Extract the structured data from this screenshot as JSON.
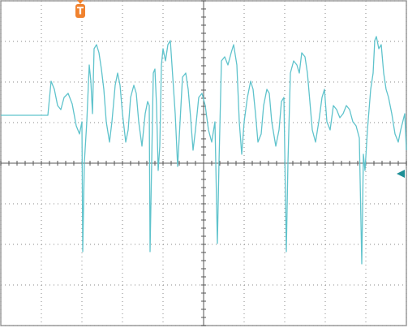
{
  "chart_data": {
    "type": "line",
    "trigger_label": "T",
    "trigger_x": 1.96,
    "ground_level": -0.26,
    "xlim": [
      0,
      10
    ],
    "ylim": [
      -4,
      4
    ],
    "xticks": [
      0,
      1,
      2,
      3,
      4,
      5,
      6,
      7,
      8,
      9,
      10
    ],
    "yticks": [
      -4,
      -3,
      -2,
      -1,
      0,
      1,
      2,
      3,
      4
    ],
    "grid": true,
    "series": [
      {
        "color": "#5fc3cc",
        "x": [
          0,
          1.16,
          1.24,
          1.32,
          1.4,
          1.48,
          1.56,
          1.66,
          1.76,
          1.86,
          1.94,
          2.0,
          2.02,
          2.06,
          2.12,
          2.18,
          2.22,
          2.26,
          2.3,
          2.36,
          2.42,
          2.48,
          2.54,
          2.6,
          2.68,
          2.74,
          2.82,
          2.88,
          2.94,
          3.0,
          3.08,
          3.14,
          3.2,
          3.28,
          3.34,
          3.4,
          3.48,
          3.56,
          3.62,
          3.66,
          3.68,
          3.72,
          3.76,
          3.8,
          3.84,
          3.88,
          3.92,
          3.96,
          4.0,
          4.06,
          4.12,
          4.18,
          4.24,
          4.3,
          4.36,
          4.42,
          4.48,
          4.56,
          4.62,
          4.68,
          4.74,
          4.8,
          4.88,
          4.96,
          5.04,
          5.12,
          5.2,
          5.28,
          5.34,
          5.38,
          5.44,
          5.52,
          5.6,
          5.68,
          5.74,
          5.82,
          5.88,
          5.94,
          6.0,
          6.08,
          6.16,
          6.22,
          6.28,
          6.34,
          6.42,
          6.48,
          6.56,
          6.62,
          6.68,
          6.78,
          6.86,
          6.92,
          6.98,
          7.04,
          7.08,
          7.14,
          7.22,
          7.3,
          7.36,
          7.42,
          7.5,
          7.56,
          7.62,
          7.68,
          7.76,
          7.84,
          7.92,
          7.98,
          8.04,
          8.12,
          8.2,
          8.28,
          8.36,
          8.44,
          8.52,
          8.6,
          8.68,
          8.76,
          8.84,
          8.9,
          8.94,
          8.98,
          9.04,
          9.12,
          9.18,
          9.22,
          9.26,
          9.32,
          9.38,
          9.44,
          9.5,
          9.56,
          9.64,
          9.72,
          9.8,
          9.86,
          9.96,
          10.0
        ],
        "values": [
          1.18,
          1.18,
          2.02,
          1.82,
          1.42,
          1.32,
          1.62,
          1.72,
          1.46,
          0.92,
          0.72,
          1.02,
          -2.18,
          0.02,
          1.02,
          2.42,
          2.02,
          1.22,
          2.82,
          2.92,
          2.72,
          2.32,
          1.82,
          1.02,
          0.52,
          1.02,
          1.92,
          2.22,
          1.92,
          1.22,
          0.52,
          0.82,
          1.62,
          1.92,
          1.72,
          1.02,
          0.42,
          1.22,
          1.52,
          1.42,
          -2.18,
          0.02,
          2.22,
          2.32,
          1.42,
          -0.18,
          0.42,
          2.42,
          2.82,
          2.52,
          2.92,
          3.02,
          2.12,
          1.22,
          -0.08,
          1.02,
          2.12,
          2.22,
          1.82,
          1.12,
          0.32,
          0.82,
          1.62,
          1.72,
          1.42,
          0.82,
          0.52,
          1.02,
          -1.98,
          0.02,
          2.52,
          2.62,
          2.42,
          2.72,
          2.92,
          2.42,
          1.02,
          0.22,
          1.02,
          1.62,
          2.02,
          1.82,
          1.22,
          0.52,
          0.72,
          1.42,
          1.82,
          1.72,
          1.02,
          0.42,
          0.82,
          1.52,
          1.62,
          -2.18,
          0.02,
          2.22,
          2.52,
          2.42,
          2.22,
          2.72,
          2.62,
          2.22,
          1.52,
          0.82,
          0.52,
          1.02,
          1.62,
          1.82,
          1.02,
          0.82,
          1.42,
          1.32,
          1.12,
          1.22,
          1.42,
          1.32,
          1.02,
          0.92,
          0.62,
          -2.48,
          0.22,
          -0.18,
          0.82,
          1.82,
          2.22,
          3.02,
          3.12,
          2.82,
          2.92,
          2.22,
          1.82,
          1.62,
          1.22,
          0.72,
          0.52,
          0.82,
          1.22,
          0.32
        ]
      }
    ]
  }
}
